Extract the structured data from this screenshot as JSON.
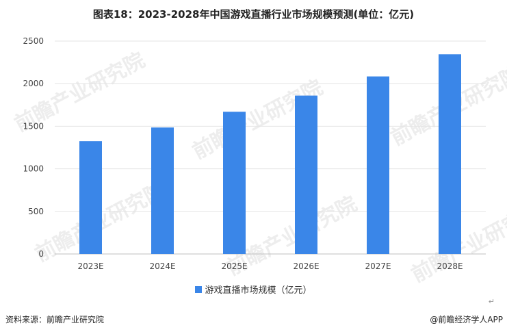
{
  "title": "图表18：2023-2028年中国游戏直播行业市场规模预测(单位：亿元)",
  "chart_data": {
    "type": "bar",
    "categories": [
      "2023E",
      "2024E",
      "2025E",
      "2026E",
      "2027E",
      "2028E"
    ],
    "series": [
      {
        "name": "游戏直播市场规模（亿元）",
        "values": [
          1325,
          1485,
          1670,
          1860,
          2085,
          2345
        ]
      }
    ],
    "ylim": [
      0,
      2500
    ],
    "yticks": [
      "0",
      "500",
      "1000",
      "1500",
      "2000",
      "2500"
    ],
    "grid": true,
    "legend": "bottom",
    "bar_color": "#3a86e8"
  },
  "watermark": "前瞻产业研究院",
  "footer": {
    "source": "资料来源：前瞻产业研究院",
    "brand": "@前瞻经济学人APP"
  },
  "return_mark": "↵"
}
